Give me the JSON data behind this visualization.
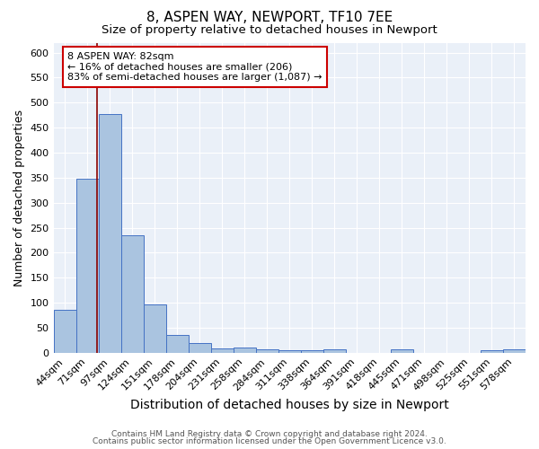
{
  "title1": "8, ASPEN WAY, NEWPORT, TF10 7EE",
  "title2": "Size of property relative to detached houses in Newport",
  "xlabel": "Distribution of detached houses by size in Newport",
  "ylabel": "Number of detached properties",
  "footnote1": "Contains HM Land Registry data © Crown copyright and database right 2024.",
  "footnote2": "Contains public sector information licensed under the Open Government Licence v3.0.",
  "categories": [
    "44sqm",
    "71sqm",
    "97sqm",
    "124sqm",
    "151sqm",
    "178sqm",
    "204sqm",
    "231sqm",
    "258sqm",
    "284sqm",
    "311sqm",
    "338sqm",
    "364sqm",
    "391sqm",
    "418sqm",
    "445sqm",
    "471sqm",
    "498sqm",
    "525sqm",
    "551sqm",
    "578sqm"
  ],
  "values": [
    85,
    348,
    478,
    235,
    97,
    36,
    19,
    8,
    10,
    6,
    5,
    5,
    7,
    0,
    0,
    6,
    0,
    0,
    0,
    5,
    6
  ],
  "bar_color": "#aac4e0",
  "bar_edge_color": "#4472c4",
  "background_color": "#eaf0f8",
  "grid_color": "#ffffff",
  "marker_line_color": "#8b0000",
  "annotation_text": "8 ASPEN WAY: 82sqm\n← 16% of detached houses are smaller (206)\n83% of semi-detached houses are larger (1,087) →",
  "annotation_box_color": "#ffffff",
  "annotation_box_edge_color": "#cc0000",
  "ylim": [
    0,
    620
  ],
  "yticks": [
    0,
    50,
    100,
    150,
    200,
    250,
    300,
    350,
    400,
    450,
    500,
    550,
    600
  ],
  "title1_fontsize": 11,
  "title2_fontsize": 9.5,
  "xlabel_fontsize": 10,
  "ylabel_fontsize": 9,
  "tick_fontsize": 8,
  "annot_fontsize": 8
}
